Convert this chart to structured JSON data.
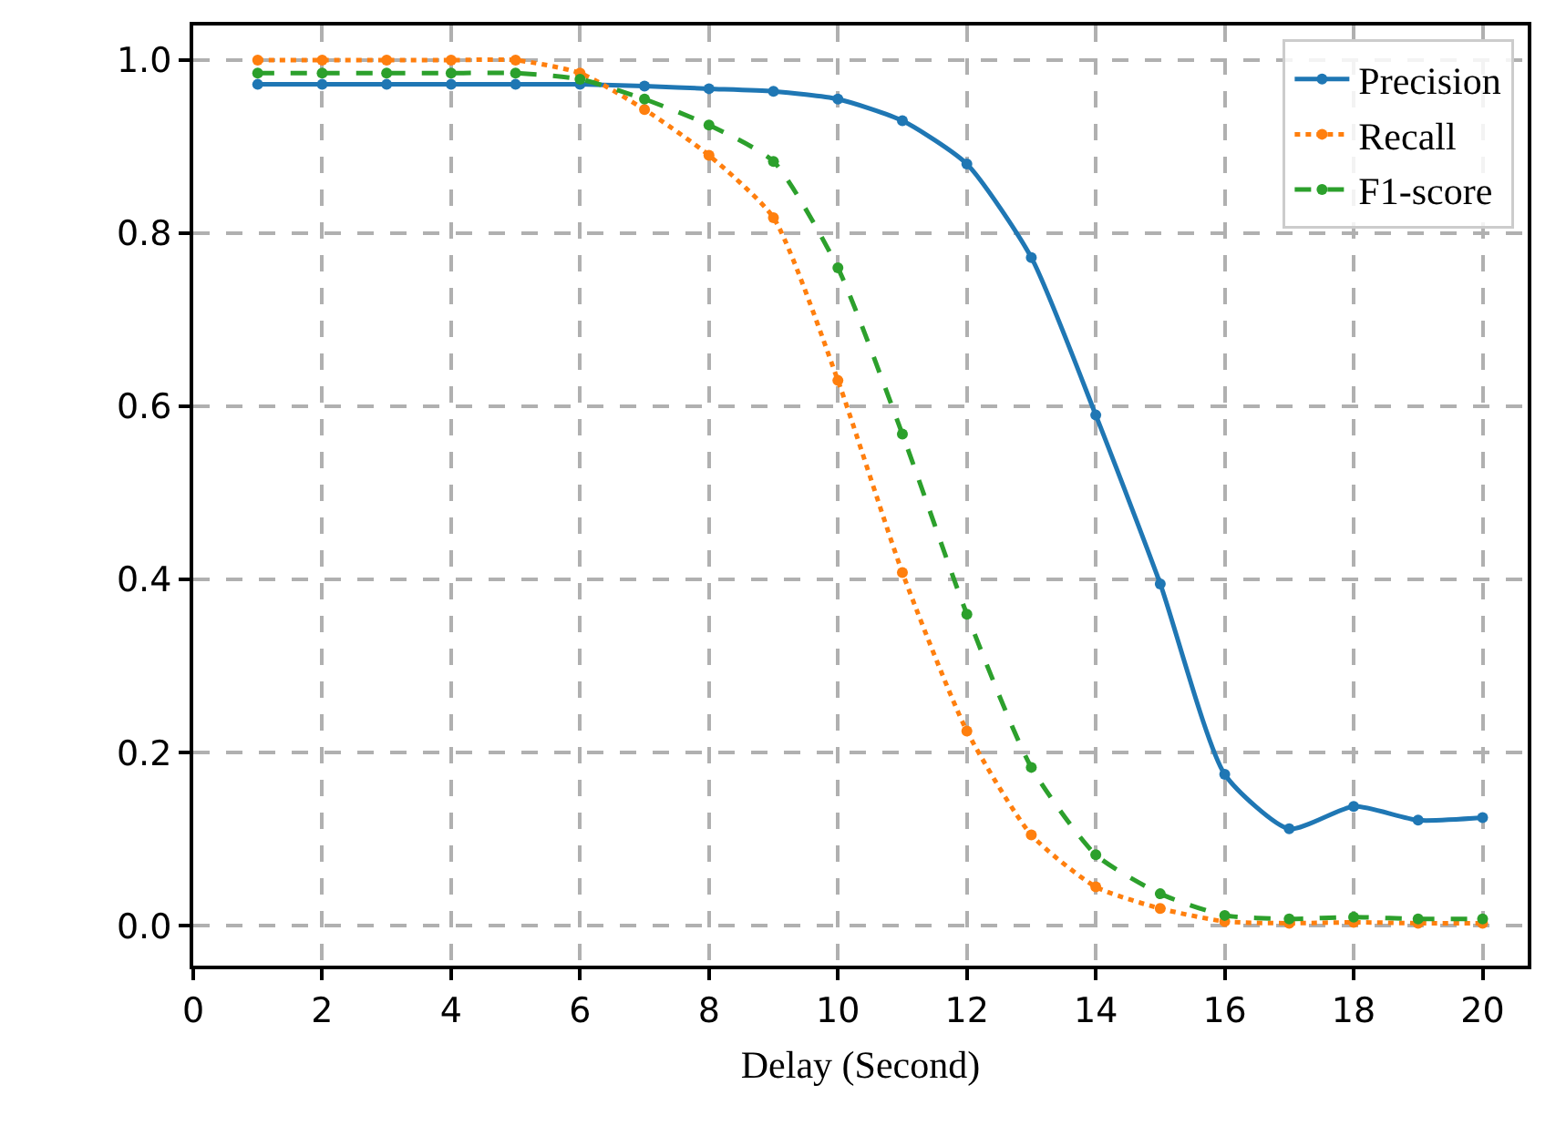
{
  "chart_data": {
    "type": "line",
    "xlabel": "Delay (Second)",
    "x": [
      1,
      2,
      3,
      4,
      5,
      6,
      7,
      8,
      9,
      10,
      11,
      12,
      13,
      14,
      15,
      16,
      17,
      18,
      19,
      20
    ],
    "series": [
      {
        "name": "Precision",
        "color": "#1f77b4",
        "line_style": "solid",
        "values": [
          0.972,
          0.972,
          0.972,
          0.972,
          0.972,
          0.972,
          0.97,
          0.967,
          0.964,
          0.955,
          0.93,
          0.88,
          0.772,
          0.59,
          0.395,
          0.175,
          0.112,
          0.138,
          0.122,
          0.125
        ]
      },
      {
        "name": "Recall",
        "color": "#ff7f0e",
        "line_style": "dotted",
        "values": [
          1.0,
          1.0,
          1.0,
          1.0,
          1.0,
          0.985,
          0.943,
          0.89,
          0.818,
          0.63,
          0.408,
          0.225,
          0.105,
          0.045,
          0.02,
          0.005,
          0.003,
          0.004,
          0.003,
          0.003
        ]
      },
      {
        "name": "F1-score",
        "color": "#2ca02c",
        "line_style": "dashed",
        "values": [
          0.985,
          0.985,
          0.985,
          0.985,
          0.985,
          0.978,
          0.955,
          0.925,
          0.883,
          0.76,
          0.568,
          0.36,
          0.183,
          0.082,
          0.037,
          0.012,
          0.008,
          0.01,
          0.008,
          0.008
        ]
      }
    ],
    "xlim": [
      0,
      20.7
    ],
    "xticks": [
      0,
      2,
      4,
      6,
      8,
      10,
      12,
      14,
      16,
      18,
      20
    ],
    "ylim": [
      -0.046,
      1.04
    ],
    "yticks": [
      {
        "value": 0,
        "label": "0.0"
      },
      {
        "value": 0.2,
        "label": "0.2"
      },
      {
        "value": 0.4,
        "label": "0.4"
      },
      {
        "value": 0.6,
        "label": "0.6"
      },
      {
        "value": 0.8,
        "label": "0.8"
      },
      {
        "value": 1.0,
        "label": "1.0"
      }
    ],
    "grid": true,
    "legend": "top right",
    "marker": "circle"
  }
}
